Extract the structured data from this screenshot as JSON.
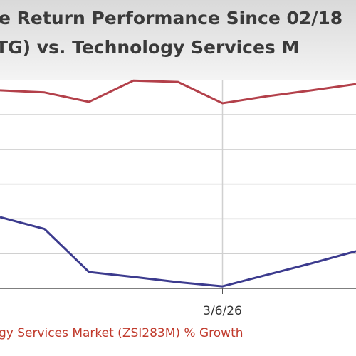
{
  "chart_data": {
    "type": "line",
    "title": "e Return Performance Since 02/18",
    "subtitle": "TG)   vs.  Technology Services M",
    "categories": [
      null,
      null,
      null,
      null,
      null,
      "3/6/26",
      null,
      null,
      null
    ],
    "series": [
      {
        "name": null,
        "color": "#b3404a",
        "values": [
          5.7,
          5.64,
          5.37,
          5.98,
          5.94,
          5.33,
          5.53,
          5.7,
          5.88
        ]
      },
      {
        "name": "gy Services Market (ZSI283M) % Growth",
        "color": "#3c3b8e",
        "values": [
          2.05,
          1.71,
          0.47,
          0.33,
          0.18,
          0.06,
          0.39,
          0.72,
          1.07
        ]
      }
    ],
    "ylim": [
      0,
      8.3
    ],
    "yticks": [
      1,
      2,
      3,
      4,
      5
    ],
    "grid": true
  }
}
